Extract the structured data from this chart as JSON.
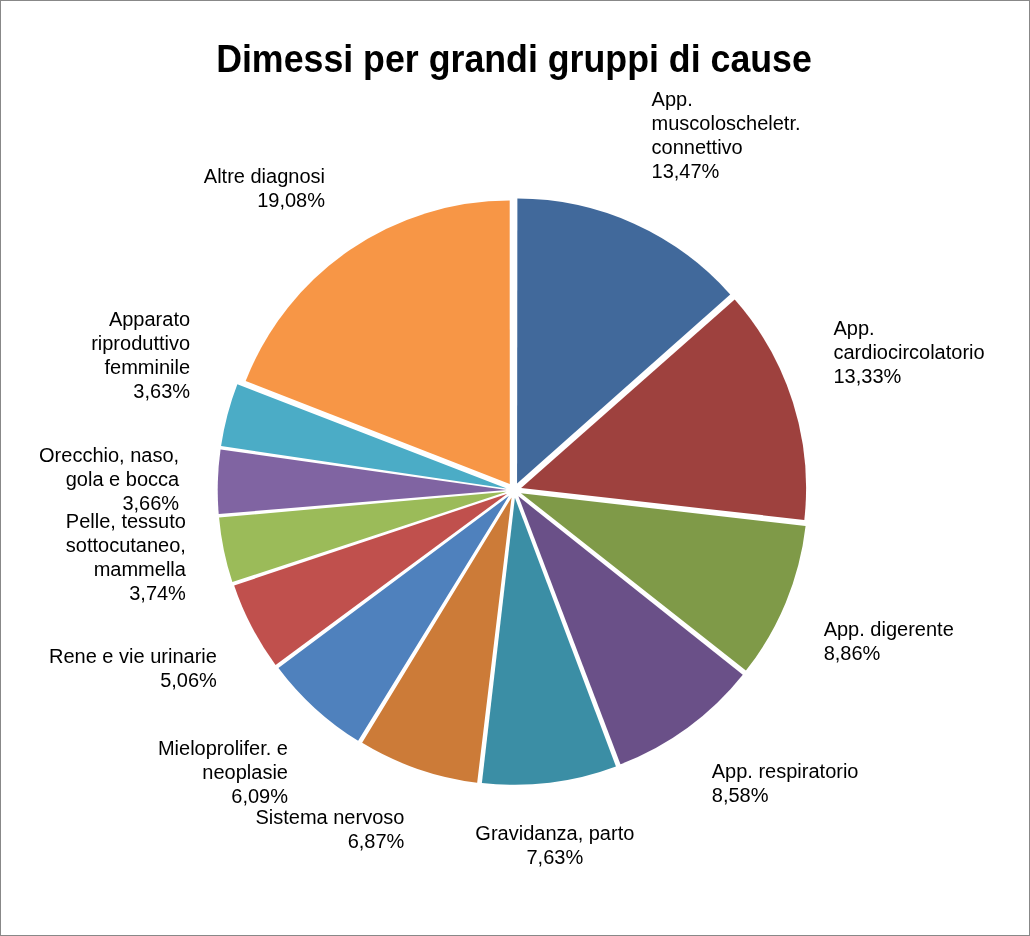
{
  "chart_data": {
    "type": "pie",
    "title": "Dimessi per grandi gruppi di cause",
    "categories": [
      "App. muscoloscheletr. connettivo",
      "App. cardiocircolatorio",
      "App. digerente",
      "App. respiratorio",
      "Gravidanza, parto",
      "Sistema nervoso",
      "Mieloprolifer. e neoplasie",
      "Rene e vie urinarie",
      "Pelle, tessuto sottocutaneo, mammella",
      "Orecchio, naso, gola e bocca",
      "Apparato riproduttivo femminile",
      "Altre diagnosi"
    ],
    "values": [
      13.47,
      13.33,
      8.86,
      8.58,
      7.63,
      6.87,
      6.09,
      5.06,
      3.74,
      3.66,
      3.63,
      19.08
    ],
    "value_labels": [
      "13,47%",
      "13,33%",
      "8,86%",
      "8,58%",
      "7,63%",
      "6,87%",
      "6,09%",
      "5,06%",
      "3,74%",
      "3,66%",
      "3,63%",
      "19,08%"
    ],
    "colors": [
      "#41699b",
      "#9e413e",
      "#7f9a48",
      "#6a5088",
      "#3b8ea5",
      "#cc7b38",
      "#4f81bd",
      "#c0504d",
      "#9bbb59",
      "#8064a2",
      "#4bacc6",
      "#f79646"
    ],
    "legend": false
  }
}
